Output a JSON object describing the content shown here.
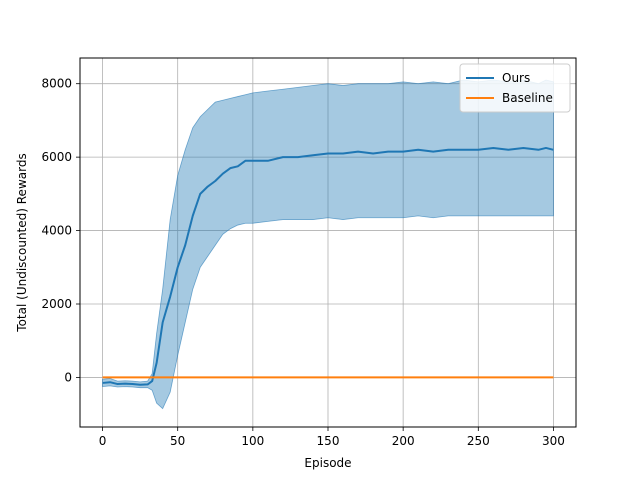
{
  "chart_data": {
    "type": "line",
    "xlabel": "Episode",
    "ylabel": "Total (Undiscounted) Rewards",
    "xlim": [
      -15,
      315
    ],
    "ylim": [
      -1350,
      8700
    ],
    "xticks": [
      0,
      50,
      100,
      150,
      200,
      250,
      300
    ],
    "yticks": [
      0,
      2000,
      4000,
      6000,
      8000
    ],
    "grid": true,
    "legend": {
      "placement": "top-right",
      "entries": [
        "Ours",
        "Baseline"
      ]
    },
    "colors": {
      "ours": "#1f77b4",
      "ours_band": "#1f77b4",
      "baseline": "#ff7f0e"
    },
    "series": [
      {
        "name": "Ours",
        "color": "#1f77b4",
        "x": [
          0,
          5,
          10,
          15,
          20,
          25,
          30,
          33,
          36,
          40,
          45,
          50,
          55,
          60,
          65,
          70,
          75,
          80,
          85,
          90,
          95,
          100,
          110,
          120,
          130,
          140,
          150,
          160,
          170,
          180,
          190,
          200,
          210,
          220,
          230,
          240,
          250,
          260,
          270,
          280,
          290,
          295,
          300
        ],
        "mean": [
          -150,
          -130,
          -180,
          -170,
          -180,
          -200,
          -190,
          -100,
          400,
          1500,
          2200,
          3000,
          3600,
          4400,
          5000,
          5200,
          5350,
          5550,
          5700,
          5750,
          5900,
          5900,
          5900,
          6000,
          6000,
          6050,
          6100,
          6100,
          6150,
          6100,
          6150,
          6150,
          6200,
          6150,
          6200,
          6200,
          6200,
          6250,
          6200,
          6250,
          6200,
          6250,
          6200
        ],
        "upper": [
          -50,
          -30,
          -100,
          -90,
          -100,
          -120,
          -100,
          100,
          1200,
          2400,
          4300,
          5500,
          6200,
          6800,
          7100,
          7300,
          7500,
          7550,
          7600,
          7650,
          7700,
          7750,
          7800,
          7850,
          7900,
          7950,
          8000,
          7950,
          8000,
          8000,
          8000,
          8050,
          8000,
          8050,
          8000,
          8100,
          8050,
          8100,
          8050,
          8100,
          8000,
          8100,
          8050
        ],
        "lower": [
          -250,
          -230,
          -260,
          -250,
          -260,
          -280,
          -280,
          -350,
          -700,
          -850,
          -400,
          600,
          1500,
          2400,
          3000,
          3300,
          3600,
          3900,
          4050,
          4150,
          4200,
          4200,
          4250,
          4300,
          4300,
          4300,
          4350,
          4300,
          4350,
          4350,
          4350,
          4350,
          4400,
          4350,
          4400,
          4400,
          4400,
          4400,
          4400,
          4400,
          4400,
          4400,
          4400
        ]
      },
      {
        "name": "Baseline",
        "color": "#ff7f0e",
        "x": [
          0,
          300
        ],
        "mean": [
          0,
          0
        ]
      }
    ]
  }
}
